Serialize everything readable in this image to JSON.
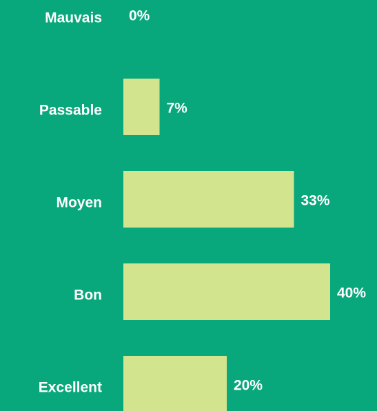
{
  "chart_data": {
    "type": "bar",
    "orientation": "horizontal",
    "categories": [
      "Mauvais",
      "Passable",
      "Moyen",
      "Bon",
      "Excellent"
    ],
    "values": [
      0,
      7,
      33,
      40,
      20
    ],
    "value_labels": [
      "0%",
      "7%",
      "33%",
      "40%",
      "20%"
    ],
    "color": "#d3e48f",
    "background": "#09a77c"
  }
}
